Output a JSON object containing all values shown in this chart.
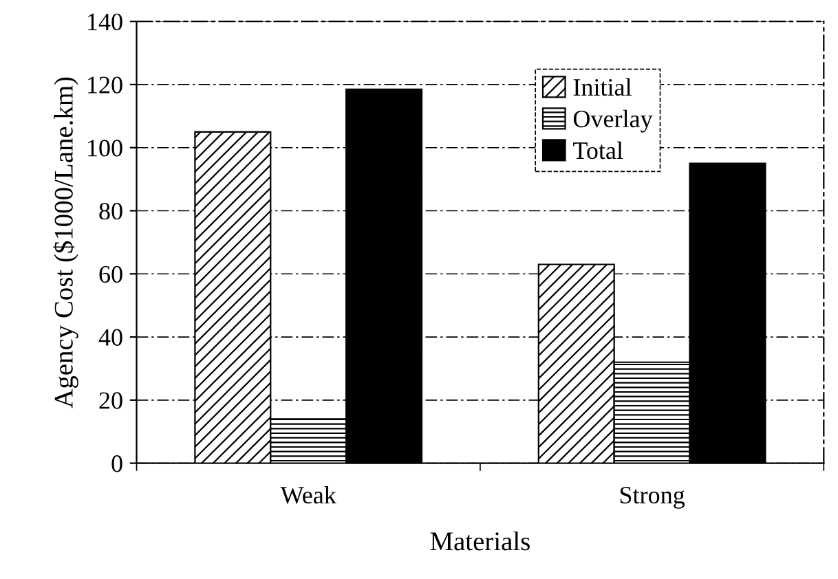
{
  "chart_data": {
    "type": "bar",
    "xlabel": "Materials",
    "ylabel": "Agency Cost ($1000/Lane.km)",
    "categories": [
      "Weak",
      "Strong"
    ],
    "series": [
      {
        "name": "Initial",
        "color": "#000000",
        "values": [
          105,
          63
        ]
      },
      {
        "name": "Overlay",
        "color": "#000000",
        "values": [
          14,
          32
        ]
      },
      {
        "name": "Total",
        "color": "#000000",
        "values": [
          118.5,
          95
        ]
      }
    ],
    "ylim": [
      0,
      140
    ],
    "yticks": [
      0,
      20,
      40,
      60,
      80,
      100,
      120,
      140
    ],
    "grid": "y",
    "legend": "top right"
  }
}
